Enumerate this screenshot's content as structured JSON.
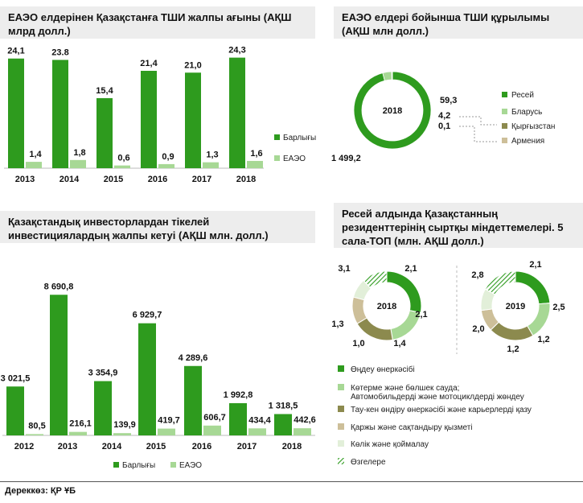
{
  "panel1": {
    "title": "ЕАЭО елдерінен Қазақстанға ТШИ жалпы ағыны (АҚШ млрд долл.)",
    "chart_data": {
      "type": "bar",
      "categories": [
        "2013",
        "2014",
        "2015",
        "2016",
        "2017",
        "2018"
      ],
      "series": [
        {
          "name": "Барлығы",
          "values": [
            24.1,
            23.8,
            15.4,
            21.4,
            21.0,
            24.3
          ],
          "labels": [
            "24,1",
            "23.8",
            "15,4",
            "21,4",
            "21,0",
            "24,3"
          ],
          "color": "#2e9b1e"
        },
        {
          "name": "ЕАЭО",
          "values": [
            1.4,
            1.8,
            0.6,
            0.9,
            1.3,
            1.6
          ],
          "labels": [
            "1,4",
            "1,8",
            "0,6",
            "0,9",
            "1,3",
            "1,6"
          ],
          "color": "#a7d895"
        }
      ],
      "ylim": [
        0,
        26
      ],
      "legend": "right"
    }
  },
  "panel2": {
    "title": "ЕАЭО елдері бойынша ТШИ құрылымы (АҚШ млн долл.)",
    "chart_data": {
      "type": "pie",
      "center_label": "2018",
      "slices": [
        {
          "name": "Ресей",
          "value": 1499.2,
          "label": "1 499,2",
          "color": "#2e9b1e"
        },
        {
          "name": "Бларусь",
          "value": 59.3,
          "label": "59,3",
          "color": "#a7d895"
        },
        {
          "name": "Қырғызстан",
          "value": 4.2,
          "label": "4,2",
          "color": "#8c8a4e"
        },
        {
          "name": "Армения",
          "value": 0.1,
          "label": "0,1",
          "color": "#cdbf99"
        }
      ],
      "legend": "right"
    }
  },
  "panel3": {
    "title": "Қазақстандық инвесторлардан тікелей инвестициялардың жалпы кетуі (АҚШ млн. долл.)",
    "chart_data": {
      "type": "bar",
      "categories": [
        "2012",
        "2013",
        "2014",
        "2015",
        "2016",
        "2017",
        "2018"
      ],
      "series": [
        {
          "name": "Барлығы",
          "values": [
            3021.5,
            8690.8,
            3354.9,
            6929.7,
            4289.6,
            1992.8,
            1318.5
          ],
          "labels": [
            "3 021,5",
            "8 690,8",
            "3 354,9",
            "6 929,7",
            "4 289,6",
            "1 992,8",
            "1 318,5"
          ],
          "color": "#2e9b1e"
        },
        {
          "name": "ЕАЭО",
          "values": [
            80.5,
            216.1,
            139.9,
            419.7,
            606.7,
            434.4,
            442.6
          ],
          "labels": [
            "80,5",
            "216,1",
            "139,9",
            "419,7",
            "606,7",
            "434,4",
            "442,6"
          ],
          "color": "#a7d895"
        }
      ],
      "ylim": [
        0,
        9500
      ],
      "legend": "bottom"
    }
  },
  "panel4": {
    "title": "Ресей алдында Қазақстанның резиденттерінің сыртқы міндеттемелері. 5 сала-ТОП (млн. АҚШ долл.)",
    "chart_data": [
      {
        "type": "pie",
        "center_label": "2018",
        "slices": [
          {
            "name": "Өңдеу өнеркәсібі",
            "value": 3.1,
            "label": "3,1"
          },
          {
            "name": "Көтерме және бөлшек сауда; Автомобильдерді және мотоциклдерді жөндеу",
            "value": 2.1,
            "label": "2,1"
          },
          {
            "name": "Тау-кен өндіру өнеркәсібі және карьерлерді қазу",
            "value": 2.1,
            "label": "2,1"
          },
          {
            "name": "Қаржы және сақтандыру қызметі",
            "value": 1.4,
            "label": "1,4"
          },
          {
            "name": "Көлік және қоймалау",
            "value": 1.0,
            "label": "1,0"
          },
          {
            "name": "Өзгелере",
            "value": 1.3,
            "label": "1,3"
          }
        ]
      },
      {
        "type": "pie",
        "center_label": "2019",
        "slices": [
          {
            "name": "Өңдеу өнеркәсібі",
            "value": 2.8,
            "label": "2,8"
          },
          {
            "name": "Көтерме және бөлшек сауда; Автомобильдерді және мотоциклдерді жөндеу",
            "value": 2.1,
            "label": "2,1"
          },
          {
            "name": "Тау-кен өндіру өнеркәсібі және карьерлерді қазу",
            "value": 2.5,
            "label": "2,5"
          },
          {
            "name": "Қаржы және сақтандыру қызметі",
            "value": 1.2,
            "label": "1,2"
          },
          {
            "name": "Көлік және қоймалау",
            "value": 1.2,
            "label": "1,2"
          },
          {
            "name": "Өзгелере",
            "value": 2.0,
            "label": "2,0"
          }
        ]
      }
    ],
    "legend": [
      {
        "name": "Өңдеу өнеркәсібі",
        "color": "#2e9b1e"
      },
      {
        "name": "Көтерме және бөлшек сауда;",
        "name2": "Автомобильдерді және мотоциклдерді жөндеу",
        "color": "#a7d895"
      },
      {
        "name": "Тау-кен өндіру өнеркәсібі және карьерлерді қазу",
        "color": "#8c8a4e"
      },
      {
        "name": "Қаржы және сақтандыру қызметі",
        "color": "#cdbf99"
      },
      {
        "name": "Көлік және қоймалау",
        "color": "#e2efd9"
      },
      {
        "name": "Өзгелере",
        "color": "hatch"
      }
    ]
  },
  "source": "Дереккөз: ҚР ҰБ"
}
